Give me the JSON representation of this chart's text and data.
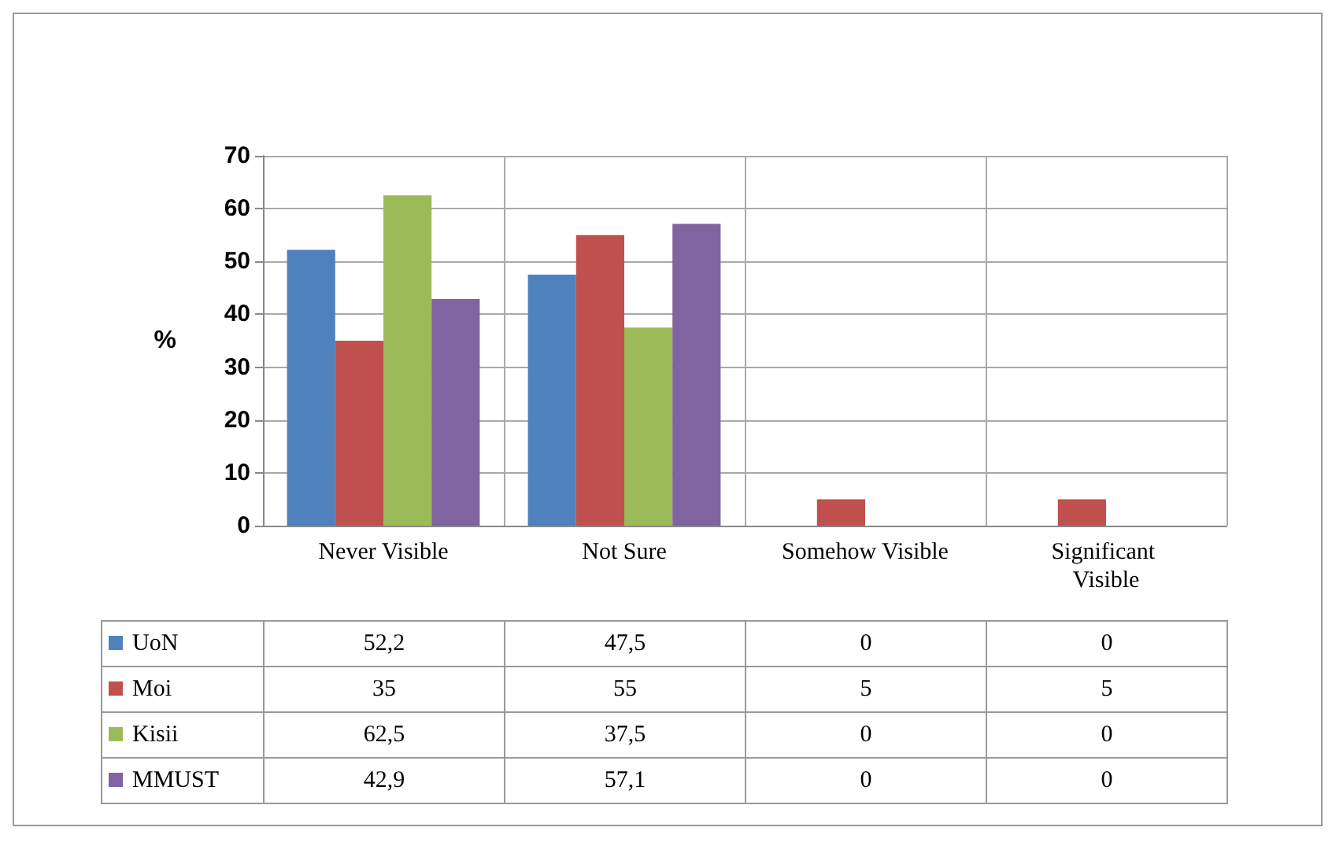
{
  "chart_data": {
    "type": "bar",
    "ylabel": "%",
    "categories": [
      "Never Visible",
      "Not Sure",
      "Somehow Visible",
      "Significant Visible"
    ],
    "series": [
      {
        "name": "UoN",
        "color": "#4f81bd",
        "values": [
          52.2,
          47.5,
          0,
          0
        ],
        "value_labels": [
          "52,2",
          "47,5",
          "0",
          "0"
        ]
      },
      {
        "name": "Moi",
        "color": "#c0504d",
        "values": [
          35,
          55,
          5,
          5
        ],
        "value_labels": [
          "35",
          "55",
          "5",
          "5"
        ]
      },
      {
        "name": "Kisii",
        "color": "#9bbb59",
        "values": [
          62.5,
          37.5,
          0,
          0
        ],
        "value_labels": [
          "62,5",
          "37,5",
          "0",
          "0"
        ]
      },
      {
        "name": "MMUST",
        "color": "#8064a2",
        "values": [
          42.9,
          57.1,
          0,
          0
        ],
        "value_labels": [
          "42,9",
          "57,1",
          "0",
          "0"
        ]
      }
    ],
    "ylim": [
      0,
      70
    ],
    "yticks": [
      0,
      10,
      20,
      30,
      40,
      50,
      60,
      70
    ],
    "grid": true,
    "legend": "bottom left"
  }
}
